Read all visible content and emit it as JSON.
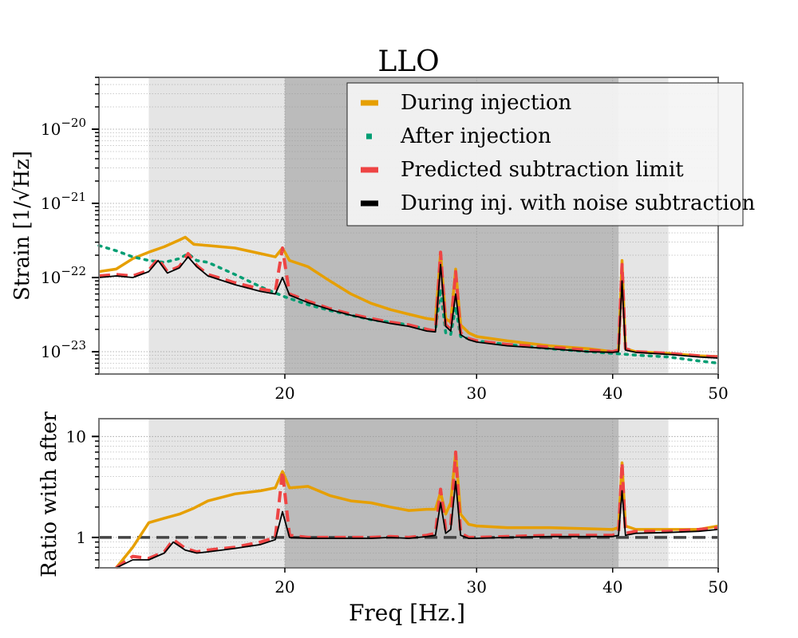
{
  "chart_data": [
    {
      "type": "line",
      "title": "LLO",
      "ylabel": "Strain [1/√Hz]",
      "xscale": "log",
      "yscale": "log",
      "xlim": [
        13.5,
        50
      ],
      "ylim": [
        5e-24,
        5e-20
      ],
      "xticks": [
        20,
        30,
        40,
        50
      ],
      "xtick_labels": [
        "20",
        "30",
        "40",
        "50"
      ],
      "yticks": [
        1e-23,
        1e-22,
        1e-21,
        1e-20
      ],
      "ytick_labels": [
        {
          "base": "10",
          "exp": "−23"
        },
        {
          "base": "10",
          "exp": "−22"
        },
        {
          "base": "10",
          "exp": "−21"
        },
        {
          "base": "10",
          "exp": "−20"
        }
      ],
      "grid": true,
      "legend_position": "upper-right",
      "shaded_regions": [
        {
          "x": [
            15,
            45
          ],
          "color": "#e5e5e5"
        },
        {
          "x": [
            20,
            40.5
          ],
          "color": "#bbbbbb"
        }
      ],
      "series": [
        {
          "name": "During injection",
          "color": "#e69f00",
          "style": "solid",
          "x": [
            13.5,
            14,
            14.5,
            15,
            15.5,
            16,
            16.2,
            16.5,
            17,
            18,
            19,
            19.6,
            19.9,
            20.2,
            21,
            22,
            23,
            24,
            25,
            26,
            27,
            27.5,
            27.8,
            28.1,
            28.4,
            28.7,
            29,
            29.5,
            30,
            32,
            35,
            38,
            40,
            40.5,
            40.8,
            41.1,
            42,
            45,
            48,
            50
          ],
          "y": [
            1.2e-22,
            1.3e-22,
            1.8e-22,
            2.2e-22,
            2.6e-22,
            3.2e-22,
            3.5e-22,
            2.8e-22,
            2.7e-22,
            2.5e-22,
            2.1e-22,
            1.9e-22,
            2.5e-22,
            1.7e-22,
            1.4e-22,
            9e-23,
            6e-23,
            4.5e-23,
            3.7e-23,
            3.2e-23,
            2.8e-23,
            2.7e-23,
            2.2e-22,
            2.8e-23,
            2.5e-23,
            1.3e-22,
            2.3e-23,
            1.8e-23,
            1.6e-23,
            1.4e-23,
            1.2e-23,
            1.1e-23,
            1e-23,
            1.05e-23,
            1.7e-22,
            1.1e-23,
            1e-23,
            9.5e-24,
            8.8e-24,
            8.6e-24
          ]
        },
        {
          "name": "After injection",
          "color": "#009e73",
          "style": "dotted",
          "x": [
            13.5,
            14,
            14.5,
            15,
            15.5,
            16,
            16.3,
            16.6,
            17,
            18,
            19,
            20,
            21,
            22,
            23,
            24,
            25,
            26,
            27,
            27.5,
            27.8,
            28.1,
            28.4,
            28.7,
            29,
            30,
            32,
            35,
            38,
            40,
            42,
            45,
            48,
            50
          ],
          "y": [
            2.7e-22,
            2.3e-22,
            1.9e-22,
            1.7e-22,
            1.6e-22,
            1.8e-22,
            2.1e-22,
            1.7e-22,
            1.6e-22,
            1.1e-22,
            7.5e-23,
            5.5e-23,
            4.3e-23,
            3.6e-23,
            3.1e-23,
            2.7e-23,
            2.5e-23,
            2.3e-23,
            2e-23,
            1.9e-23,
            7e-23,
            1.8e-23,
            1.7e-23,
            4e-23,
            1.6e-23,
            1.4e-23,
            1.25e-23,
            1.1e-23,
            1e-23,
            9.5e-24,
            9e-24,
            8.5e-24,
            7.5e-24,
            7e-24
          ]
        },
        {
          "name": "Predicted subtraction limit",
          "color": "#ee4444",
          "style": "dashed",
          "x": [
            13.5,
            14,
            14.5,
            15,
            15.3,
            15.6,
            16,
            16.3,
            16.6,
            17,
            18,
            19,
            19.6,
            19.9,
            20.2,
            21,
            22,
            23,
            24,
            25,
            26,
            27,
            27.5,
            27.8,
            28.1,
            28.4,
            28.7,
            29,
            29.5,
            30,
            32,
            35,
            38,
            40,
            40.5,
            40.8,
            41.1,
            42,
            45,
            48,
            50
          ],
          "y": [
            1.05e-22,
            1.1e-22,
            1.05e-22,
            1.25e-22,
            1.8e-22,
            1.2e-22,
            1.4e-22,
            2.1e-22,
            1.45e-22,
            1.1e-22,
            8.5e-23,
            7e-23,
            6.5e-23,
            2.5e-22,
            6e-23,
            4.8e-23,
            3.8e-23,
            3.2e-23,
            2.8e-23,
            2.5e-23,
            2.3e-23,
            2e-23,
            1.9e-23,
            2.2e-22,
            2.3e-23,
            2e-23,
            1.2e-22,
            1.8e-23,
            1.5e-23,
            1.4e-23,
            1.25e-23,
            1.15e-23,
            1.05e-23,
            1e-23,
            1.05e-23,
            1.5e-22,
            1.1e-23,
            1e-23,
            9.5e-24,
            8.8e-24,
            8.5e-24
          ]
        },
        {
          "name": "During inj. with noise subtraction",
          "color": "#000000",
          "style": "solid-thin",
          "x": [
            13.5,
            14,
            14.5,
            15,
            15.3,
            15.6,
            16,
            16.3,
            16.6,
            17,
            18,
            19,
            19.6,
            19.9,
            20.2,
            21,
            22,
            23,
            24,
            25,
            26,
            27,
            27.5,
            27.8,
            28.1,
            28.4,
            28.7,
            29,
            29.5,
            30,
            32,
            35,
            38,
            40,
            40.5,
            40.8,
            41.1,
            42,
            45,
            48,
            50
          ],
          "y": [
            1e-22,
            1.05e-22,
            1e-22,
            1.2e-22,
            1.7e-22,
            1.15e-22,
            1.35e-22,
            1.9e-22,
            1.4e-22,
            1.05e-22,
            8e-23,
            6.5e-23,
            6e-23,
            1e-22,
            5.8e-23,
            4.6e-23,
            3.7e-23,
            3.1e-23,
            2.7e-23,
            2.4e-23,
            2.2e-23,
            1.9e-23,
            1.85e-23,
            1.5e-22,
            2.2e-23,
            1.9e-23,
            6e-23,
            1.7e-23,
            1.45e-23,
            1.35e-23,
            1.2e-23,
            1.1e-23,
            1e-23,
            9.8e-24,
            1e-23,
            9e-23,
            1.05e-23,
            9.8e-24,
            9.2e-24,
            8.5e-24,
            8.2e-24
          ]
        }
      ]
    },
    {
      "type": "line",
      "xlabel": "Freq [Hz.]",
      "ylabel": "Ratio with after",
      "xscale": "log",
      "yscale": "log",
      "xlim": [
        13.5,
        50
      ],
      "ylim": [
        0.5,
        15
      ],
      "xticks": [
        20,
        30,
        40,
        50
      ],
      "xtick_labels": [
        "20",
        "30",
        "40",
        "50"
      ],
      "yticks": [
        1,
        10
      ],
      "ytick_labels": [
        "1",
        "10"
      ],
      "grid": true,
      "reference_line": {
        "y": 1,
        "style": "dashed",
        "color": "#444444"
      },
      "shaded_regions": [
        {
          "x": [
            15,
            45
          ],
          "color": "#e5e5e5"
        },
        {
          "x": [
            20,
            40.5
          ],
          "color": "#bbbbbb"
        }
      ],
      "series": [
        {
          "name": "During injection",
          "color": "#e69f00",
          "style": "solid",
          "x": [
            14,
            14.5,
            15,
            15.5,
            16,
            16.5,
            17,
            18,
            19,
            19.6,
            19.9,
            20.2,
            21,
            22,
            23,
            24,
            25,
            26,
            27,
            27.5,
            27.8,
            28.1,
            28.4,
            28.7,
            29,
            29.5,
            30,
            32,
            35,
            38,
            40,
            40.5,
            40.8,
            41.1,
            42,
            45,
            48,
            50
          ],
          "y": [
            0.5,
            0.8,
            1.4,
            1.55,
            1.7,
            1.95,
            2.3,
            2.7,
            2.9,
            3.1,
            4.5,
            3.1,
            3.2,
            2.6,
            2.3,
            2.2,
            2.0,
            1.85,
            1.9,
            1.9,
            2.8,
            1.7,
            2.2,
            7,
            1.7,
            1.35,
            1.3,
            1.25,
            1.25,
            1.22,
            1.2,
            1.25,
            5.5,
            1.3,
            1.2,
            1.2,
            1.2,
            1.3
          ]
        },
        {
          "name": "Predicted subtraction limit",
          "color": "#ee4444",
          "style": "dashed",
          "x": [
            14,
            14.5,
            15,
            15.5,
            15.8,
            16.2,
            16.6,
            17,
            18,
            19,
            19.6,
            19.9,
            20.2,
            21,
            22,
            23,
            24,
            25,
            26,
            27,
            27.5,
            27.8,
            28.1,
            28.4,
            28.7,
            29,
            29.5,
            30,
            32,
            35,
            38,
            40,
            40.5,
            40.8,
            41.1,
            42,
            45,
            48,
            50
          ],
          "y": [
            0.5,
            0.65,
            0.62,
            0.72,
            0.95,
            0.78,
            0.72,
            0.75,
            0.8,
            0.9,
            1.0,
            4.5,
            1.05,
            1.0,
            1.0,
            1.0,
            1.0,
            1.02,
            1.0,
            1.05,
            1.1,
            3,
            1.2,
            1.3,
            7,
            1.1,
            1.0,
            1.0,
            1.02,
            1.05,
            1.05,
            1.05,
            1.1,
            5.5,
            1.1,
            1.15,
            1.15,
            1.2,
            1.25
          ]
        },
        {
          "name": "During inj. with noise subtraction",
          "color": "#000000",
          "style": "solid-thin",
          "x": [
            14,
            14.5,
            15,
            15.5,
            15.8,
            16.2,
            16.6,
            17,
            18,
            19,
            19.6,
            19.9,
            20.2,
            21,
            22,
            23,
            24,
            25,
            26,
            27,
            27.5,
            27.8,
            28.1,
            28.4,
            28.7,
            29,
            29.5,
            30,
            32,
            35,
            38,
            40,
            40.5,
            40.8,
            41.1,
            42,
            45,
            48,
            50
          ],
          "y": [
            0.5,
            0.6,
            0.6,
            0.7,
            0.9,
            0.75,
            0.7,
            0.72,
            0.78,
            0.85,
            0.95,
            1.8,
            1.0,
            0.98,
            0.98,
            0.98,
            0.98,
            1.0,
            0.98,
            1.02,
            1.05,
            2.2,
            1.1,
            1.2,
            3.6,
            1.05,
            0.98,
            0.98,
            1.0,
            1.02,
            1.02,
            1.02,
            1.05,
            2.9,
            1.05,
            1.1,
            1.12,
            1.15,
            1.2
          ]
        }
      ]
    }
  ]
}
